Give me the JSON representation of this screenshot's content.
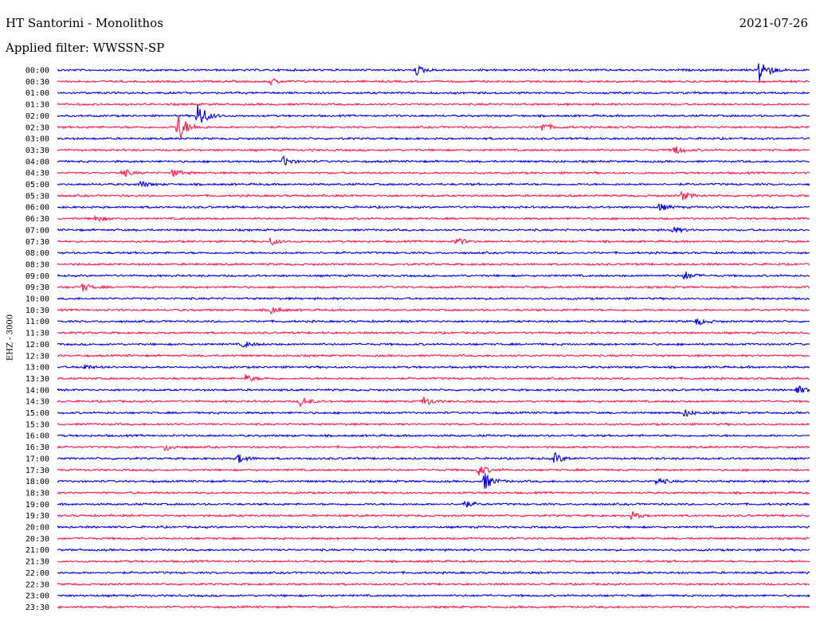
{
  "header": {
    "station": "HT Santorini - Monolithos",
    "date": "2021-07-26",
    "filter": "Applied filter: WWSSN-SP"
  },
  "channel_label": "EHZ - 3000",
  "colors": {
    "even_row": "#0000e6",
    "odd_row": "#ff1a4d"
  },
  "chart_data": {
    "type": "line",
    "title": "HT Santorini - Monolithos",
    "ylabel": "EHZ - 3000",
    "rows": [
      "00:00",
      "00:30",
      "01:00",
      "01:30",
      "02:00",
      "02:30",
      "03:00",
      "03:30",
      "04:00",
      "04:30",
      "05:00",
      "05:30",
      "06:00",
      "06:30",
      "07:00",
      "07:30",
      "08:00",
      "08:30",
      "09:00",
      "09:30",
      "10:00",
      "10:30",
      "11:00",
      "11:30",
      "12:00",
      "12:30",
      "13:00",
      "13:30",
      "14:00",
      "14:30",
      "15:00",
      "15:30",
      "16:00",
      "16:30",
      "17:00",
      "17:30",
      "18:00",
      "18:30",
      "19:00",
      "19:30",
      "20:00",
      "20:30",
      "21:00",
      "21:30",
      "22:00",
      "22:30",
      "23:00",
      "23:30"
    ],
    "events": [
      {
        "row": "00:00",
        "minute": 14.3,
        "amplitude": 1.0
      },
      {
        "row": "00:00",
        "minute": 28.0,
        "amplitude": 3.0
      },
      {
        "row": "00:30",
        "minute": 8.5,
        "amplitude": 0.6
      },
      {
        "row": "02:00",
        "minute": 5.6,
        "amplitude": 3.0
      },
      {
        "row": "02:30",
        "minute": 4.8,
        "amplitude": 3.5
      },
      {
        "row": "02:30",
        "minute": 19.3,
        "amplitude": 1.0
      },
      {
        "row": "03:30",
        "minute": 24.6,
        "amplitude": 1.0
      },
      {
        "row": "04:00",
        "minute": 9.0,
        "amplitude": 1.0
      },
      {
        "row": "04:30",
        "minute": 2.6,
        "amplitude": 0.8
      },
      {
        "row": "04:30",
        "minute": 4.6,
        "amplitude": 0.8
      },
      {
        "row": "05:00",
        "minute": 3.3,
        "amplitude": 0.7
      },
      {
        "row": "05:30",
        "minute": 24.9,
        "amplitude": 1.0
      },
      {
        "row": "06:00",
        "minute": 24.0,
        "amplitude": 0.8
      },
      {
        "row": "06:30",
        "minute": 1.5,
        "amplitude": 0.8
      },
      {
        "row": "07:00",
        "minute": 24.5,
        "amplitude": 0.8
      },
      {
        "row": "07:30",
        "minute": 8.5,
        "amplitude": 0.8
      },
      {
        "row": "07:30",
        "minute": 15.9,
        "amplitude": 0.8
      },
      {
        "row": "09:00",
        "minute": 25.0,
        "amplitude": 1.0
      },
      {
        "row": "09:30",
        "minute": 1.0,
        "amplitude": 0.8
      },
      {
        "row": "10:30",
        "minute": 8.5,
        "amplitude": 0.8
      },
      {
        "row": "11:00",
        "minute": 25.5,
        "amplitude": 0.8
      },
      {
        "row": "12:00",
        "minute": 7.4,
        "amplitude": 0.7
      },
      {
        "row": "13:00",
        "minute": 1.0,
        "amplitude": 0.6
      },
      {
        "row": "13:30",
        "minute": 7.5,
        "amplitude": 0.8
      },
      {
        "row": "14:00",
        "minute": 29.5,
        "amplitude": 1.0
      },
      {
        "row": "14:30",
        "minute": 9.7,
        "amplitude": 1.0
      },
      {
        "row": "14:30",
        "minute": 14.6,
        "amplitude": 1.0
      },
      {
        "row": "15:00",
        "minute": 25.0,
        "amplitude": 0.8
      },
      {
        "row": "16:30",
        "minute": 4.3,
        "amplitude": 0.8
      },
      {
        "row": "17:00",
        "minute": 7.2,
        "amplitude": 1.0
      },
      {
        "row": "17:00",
        "minute": 19.8,
        "amplitude": 1.2
      },
      {
        "row": "17:30",
        "minute": 16.8,
        "amplitude": 1.2
      },
      {
        "row": "18:00",
        "minute": 17.0,
        "amplitude": 2.0
      },
      {
        "row": "18:00",
        "minute": 23.9,
        "amplitude": 0.8
      },
      {
        "row": "19:00",
        "minute": 16.2,
        "amplitude": 0.8
      },
      {
        "row": "19:30",
        "minute": 22.9,
        "amplitude": 0.8
      }
    ]
  }
}
